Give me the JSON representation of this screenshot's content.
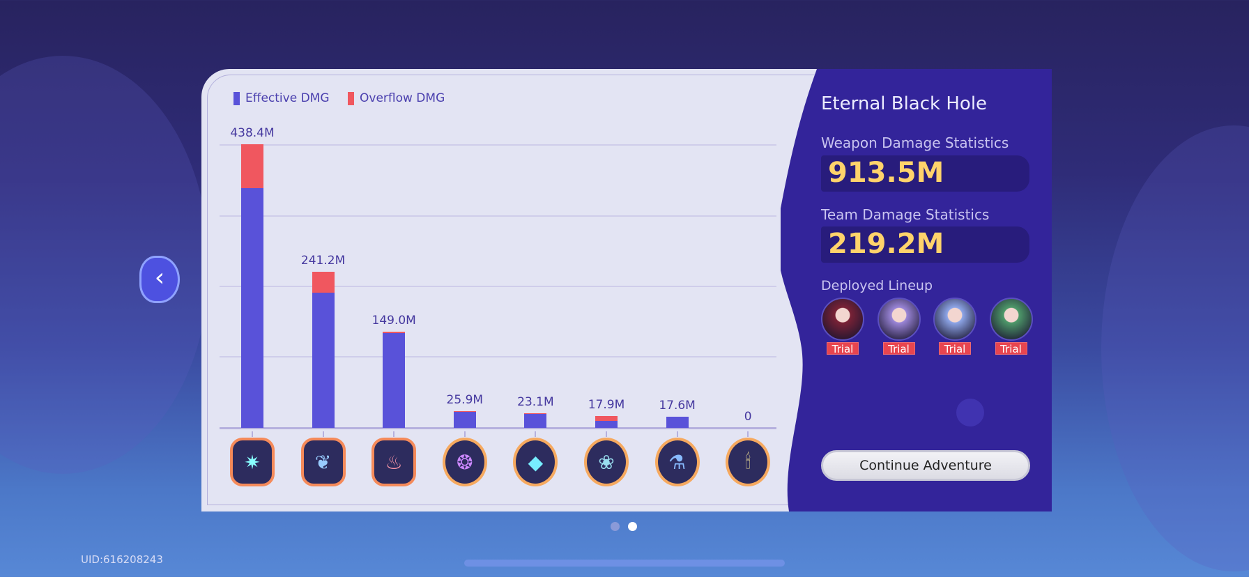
{
  "legend": {
    "effective": "Effective DMG",
    "overflow": "Overflow DMG"
  },
  "colors": {
    "effective": "#5952d9",
    "overflow": "#f0575f",
    "accent": "#ffd36b",
    "panel": "#33249a"
  },
  "chart_data": {
    "type": "bar",
    "stacked": true,
    "grid": true,
    "legend": "top-left",
    "categories": [
      "weapon-1",
      "weapon-2",
      "weapon-3",
      "weapon-4",
      "weapon-5",
      "weapon-6",
      "weapon-7",
      "weapon-8"
    ],
    "labels": [
      "438.4M",
      "241.2M",
      "149.0M",
      "25.9M",
      "23.1M",
      "17.9M",
      "17.6M",
      "0"
    ],
    "totals": [
      438.4,
      241.2,
      149.0,
      25.9,
      23.1,
      17.9,
      17.6,
      0
    ],
    "series": [
      {
        "name": "Effective DMG",
        "values": [
          370.7,
          209.2,
          147.0,
          24.9,
          22.1,
          11.0,
          17.6,
          0
        ]
      },
      {
        "name": "Overflow DMG",
        "values": [
          67.7,
          32.0,
          2.0,
          1.0,
          1.0,
          6.9,
          0,
          0
        ]
      }
    ],
    "ylim": [
      0,
      438.4
    ],
    "icons": [
      "thorn-ring-icon",
      "feather-ring-icon",
      "dragon-flask-icon",
      "thorn-wreath-icon",
      "crystal-shard-icon",
      "shell-icon",
      "canister-icon",
      "candle-icon"
    ]
  },
  "panel": {
    "title": "Eternal Black Hole",
    "weapon_label": "Weapon Damage Statistics",
    "weapon_value": "913.5M",
    "team_label": "Team Damage Statistics",
    "team_value": "219.2M",
    "lineup_label": "Deployed Lineup",
    "lineup": [
      {
        "badge": "Trial",
        "color": "#7a2236"
      },
      {
        "badge": "Trial",
        "color": "#9b86d8"
      },
      {
        "badge": "Trial",
        "color": "#8ea6e8"
      },
      {
        "badge": "Trial",
        "color": "#4e9a6a"
      }
    ],
    "continue": "Continue Adventure"
  },
  "uid": "UID:616208243",
  "pager": {
    "pages": 2,
    "active": 2
  }
}
